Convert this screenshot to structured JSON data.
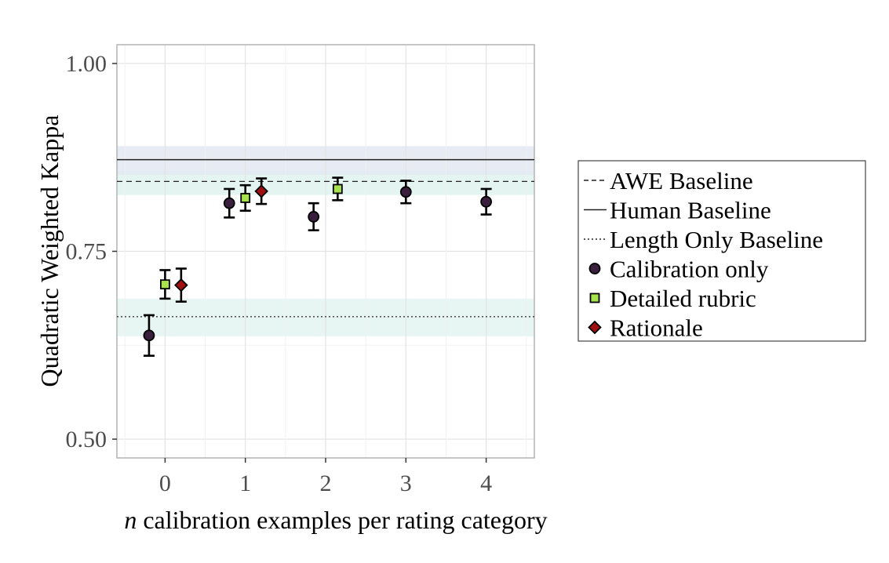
{
  "chart_data": {
    "type": "scatter",
    "title": "",
    "xlabel_italic": "n",
    "xlabel_rest": " calibration examples per rating category",
    "ylabel": "Quadratic Weighted Kappa",
    "xlim": [
      -0.6,
      4.6
    ],
    "ylim": [
      0.475,
      1.025
    ],
    "x_ticks": [
      0,
      1,
      2,
      3,
      4
    ],
    "x_tick_labels": [
      "0",
      "1",
      "2",
      "3",
      "4"
    ],
    "y_ticks": [
      0.5,
      0.75,
      1.0
    ],
    "y_tick_labels": [
      "0.50",
      "0.75",
      "1.00"
    ],
    "grid": true,
    "legend_position": "right",
    "baselines": [
      {
        "name": "AWE Baseline",
        "value": 0.843,
        "band": [
          0.825,
          0.857
        ],
        "line_style": "dashed",
        "band_color": "#dff3ee"
      },
      {
        "name": "Human Baseline",
        "value": 0.872,
        "band": [
          0.852,
          0.89
        ],
        "line_style": "solid",
        "band_color": "#e2e7f2"
      },
      {
        "name": "Length Only Baseline",
        "value": 0.663,
        "band": [
          0.637,
          0.687
        ],
        "line_style": "dotted",
        "band_color": "#e3f5f0"
      }
    ],
    "series": [
      {
        "name": "Calibration only",
        "marker": "circle",
        "color": "#3a1f3e",
        "points": [
          {
            "x": 0,
            "y": 0.638,
            "lo": 0.611,
            "hi": 0.665
          },
          {
            "x": 1,
            "y": 0.814,
            "lo": 0.795,
            "hi": 0.833
          },
          {
            "x": 2,
            "y": 0.796,
            "lo": 0.778,
            "hi": 0.814
          },
          {
            "x": 3,
            "y": 0.829,
            "lo": 0.814,
            "hi": 0.844
          },
          {
            "x": 4,
            "y": 0.816,
            "lo": 0.799,
            "hi": 0.833
          }
        ]
      },
      {
        "name": "Detailed rubric",
        "marker": "square",
        "color": "#a6e34d",
        "points": [
          {
            "x": 0,
            "y": 0.706,
            "lo": 0.687,
            "hi": 0.725
          },
          {
            "x": 1,
            "y": 0.821,
            "lo": 0.804,
            "hi": 0.838
          },
          {
            "x": 2,
            "y": 0.833,
            "lo": 0.818,
            "hi": 0.848
          }
        ]
      },
      {
        "name": "Rationale",
        "marker": "diamond",
        "color": "#a01010",
        "points": [
          {
            "x": 0,
            "y": 0.705,
            "lo": 0.683,
            "hi": 0.727
          },
          {
            "x": 1,
            "y": 0.83,
            "lo": 0.813,
            "hi": 0.847
          }
        ]
      }
    ]
  }
}
